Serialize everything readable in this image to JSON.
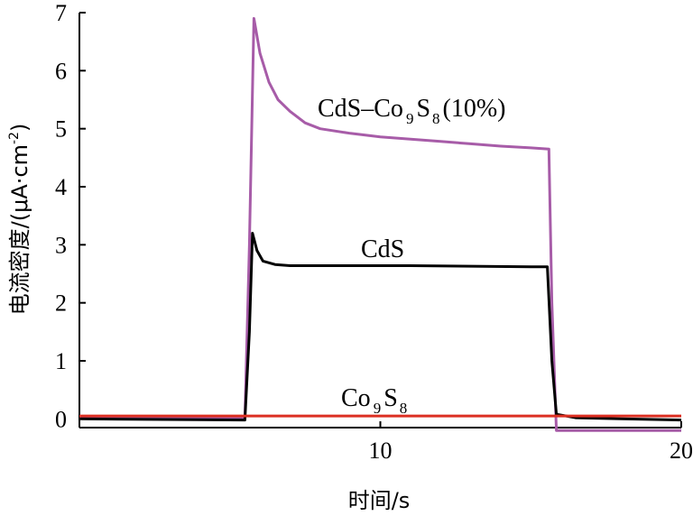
{
  "chart_data": {
    "type": "line",
    "title": "",
    "xlabel": "时间/s",
    "ylabel": "电流密度/(μA·cm",
    "ylabel_sup": "-2",
    "ylabel_close": ")",
    "xlim": [
      0,
      20
    ],
    "ylim": [
      -0.15,
      7
    ],
    "xticks": [
      10,
      20
    ],
    "xtick_labels": [
      "10",
      "20"
    ],
    "yticks": [
      0,
      1,
      2,
      3,
      4,
      5,
      6,
      7
    ],
    "ytick_labels": [
      "0",
      "1",
      "2",
      "3",
      "4",
      "5",
      "6",
      "7"
    ],
    "grid": false,
    "legend": "none",
    "series": [
      {
        "name_parts": [
          "CdS–Co",
          "9",
          "S",
          "8",
          "(10%)"
        ],
        "color": "#a75ca8",
        "points": [
          [
            0,
            0.02
          ],
          [
            5.5,
            0.02
          ],
          [
            5.65,
            3.0
          ],
          [
            5.8,
            6.9
          ],
          [
            6.0,
            6.3
          ],
          [
            6.3,
            5.8
          ],
          [
            6.6,
            5.5
          ],
          [
            7.0,
            5.3
          ],
          [
            7.5,
            5.1
          ],
          [
            8.0,
            5.0
          ],
          [
            9.0,
            4.92
          ],
          [
            10.0,
            4.86
          ],
          [
            11.0,
            4.82
          ],
          [
            12.0,
            4.78
          ],
          [
            13.0,
            4.74
          ],
          [
            14.0,
            4.7
          ],
          [
            15.0,
            4.67
          ],
          [
            15.6,
            4.65
          ],
          [
            15.7,
            2.0
          ],
          [
            15.85,
            -0.2
          ],
          [
            17,
            -0.2
          ],
          [
            18,
            -0.2
          ],
          [
            20,
            -0.2
          ]
        ]
      },
      {
        "name_parts": [
          "CdS"
        ],
        "color": "#000000",
        "points": [
          [
            0,
            0.0
          ],
          [
            5.5,
            -0.02
          ],
          [
            5.65,
            1.5
          ],
          [
            5.75,
            3.2
          ],
          [
            5.9,
            2.9
          ],
          [
            6.1,
            2.72
          ],
          [
            6.5,
            2.66
          ],
          [
            7,
            2.64
          ],
          [
            9,
            2.64
          ],
          [
            11,
            2.64
          ],
          [
            13,
            2.63
          ],
          [
            15,
            2.62
          ],
          [
            15.55,
            2.62
          ],
          [
            15.7,
            1.0
          ],
          [
            15.85,
            0.08
          ],
          [
            16.5,
            0.02
          ],
          [
            18,
            0.0
          ],
          [
            20,
            -0.02
          ]
        ]
      },
      {
        "name_parts": [
          "Co",
          "9",
          "S",
          "8"
        ],
        "color": "#dc2f22",
        "points": [
          [
            0,
            0.05
          ],
          [
            5,
            0.05
          ],
          [
            10,
            0.05
          ],
          [
            15,
            0.05
          ],
          [
            20,
            0.05
          ]
        ]
      }
    ]
  }
}
